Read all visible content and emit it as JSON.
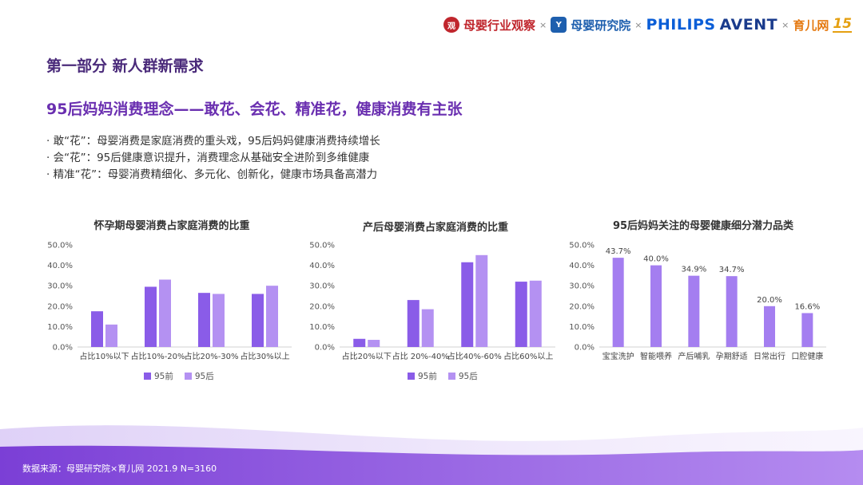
{
  "colors": {
    "pre95": "#8a5ce8",
    "post95": "#b491f2",
    "single": "#a47ef0",
    "title": "#6a2fb0"
  },
  "logos": {
    "mother_baby_observe": "母婴行业观察",
    "mother_baby_institute": "母婴研究院",
    "philips": "PHILIPS",
    "avent": "AVENT",
    "yer": "育儿网",
    "badge": "15",
    "times": "×"
  },
  "section_title": "第一部分 新人群新需求",
  "headline": "95后妈妈消费理念——敢花、会花、精准花，健康消费有主张",
  "bullets": [
    "· 敢“花”：母婴消费是家庭消费的重头戏，95后妈妈健康消费持续增长",
    "· 会“花”：95后健康意识提升，消费理念从基础安全进阶到多维健康",
    "· 精准“花”：母婴消费精细化、多元化、创新化，健康市场具备高潜力"
  ],
  "footnote": "数据来源：母婴研究院×育儿网 2021.9  N=3160",
  "chart_data": [
    {
      "type": "bar",
      "title": "怀孕期母婴消费占家庭消费的比重",
      "categories": [
        "占比10%以下",
        "占比10%-20%",
        "占比20%-30%",
        "占比30%以上"
      ],
      "series": [
        {
          "name": "95前",
          "values": [
            17.5,
            29.5,
            26.5,
            26
          ]
        },
        {
          "name": "95后",
          "values": [
            11,
            33,
            26,
            30
          ]
        }
      ],
      "ylim": [
        0,
        50
      ],
      "yticks": [
        "0.0%",
        "10.0%",
        "20.0%",
        "30.0%",
        "40.0%",
        "50.0%"
      ],
      "legend": "bottom"
    },
    {
      "type": "bar",
      "title": "产后母婴消费占家庭消费的比重",
      "categories": [
        "占比20%以下",
        "占比 20%-40%",
        "占比40%-60%",
        "占比60%以上"
      ],
      "series": [
        {
          "name": "95前",
          "values": [
            4,
            23,
            41.5,
            32
          ]
        },
        {
          "name": "95后",
          "values": [
            3.5,
            18.5,
            45,
            32.5
          ]
        }
      ],
      "ylim": [
        0,
        50
      ],
      "yticks": [
        "0.0%",
        "10.0%",
        "20.0%",
        "30.0%",
        "40.0%",
        "50.0%"
      ],
      "legend": "bottom"
    },
    {
      "type": "bar",
      "title": "95后妈妈关注的母婴健康细分潜力品类",
      "categories": [
        "宝宝洗护",
        "智能喂养",
        "产后哺乳",
        "孕期舒适",
        "日常出行",
        "口腔健康"
      ],
      "values": [
        43.7,
        40.0,
        34.9,
        34.7,
        20.0,
        16.6
      ],
      "data_labels": [
        "43.7%",
        "40.0%",
        "34.9%",
        "34.7%",
        "20.0%",
        "16.6%"
      ],
      "ylim": [
        0,
        50
      ],
      "yticks": [
        "0.0%",
        "10.0%",
        "20.0%",
        "30.0%",
        "40.0%",
        "50.0%"
      ]
    }
  ]
}
